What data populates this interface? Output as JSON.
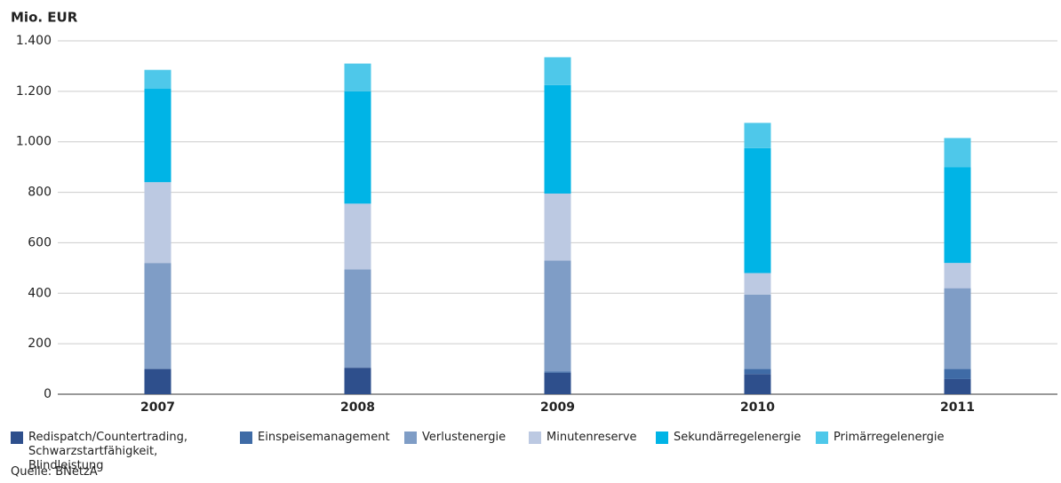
{
  "chart_data": {
    "type": "stacked-bar",
    "y_label": "Mio. EUR",
    "categories": [
      "2007",
      "2008",
      "2009",
      "2010",
      "2011"
    ],
    "series": [
      {
        "name": "Redispatch/Countertrading, Schwarzstartfähigkeit, Blindleistung",
        "color": "#2e4f8c",
        "values": [
          100,
          105,
          85,
          80,
          60
        ]
      },
      {
        "name": "Einspeisemanagement",
        "color": "#3f6ba6",
        "values": [
          0,
          0,
          5,
          20,
          40
        ]
      },
      {
        "name": "Verlustenergie",
        "color": "#7f9dc6",
        "values": [
          420,
          390,
          440,
          295,
          320
        ]
      },
      {
        "name": "Minutenreserve",
        "color": "#bcc9e2",
        "values": [
          320,
          260,
          265,
          85,
          100
        ]
      },
      {
        "name": "Sekundärregelenergie",
        "color": "#00b4e6",
        "values": [
          370,
          445,
          430,
          495,
          380
        ]
      },
      {
        "name": "Primärregelenergie",
        "color": "#4ec8ea",
        "values": [
          75,
          110,
          110,
          100,
          115
        ]
      }
    ],
    "ylim": [
      0,
      1400
    ],
    "yticks": [
      0,
      200,
      400,
      600,
      800,
      {
        "value": 1000,
        "label": "1.000"
      },
      {
        "value": 1200,
        "label": "1.200"
      },
      {
        "value": 1400,
        "label": "1.400"
      }
    ],
    "grid": true,
    "source": "Quelle: BNetzA"
  }
}
